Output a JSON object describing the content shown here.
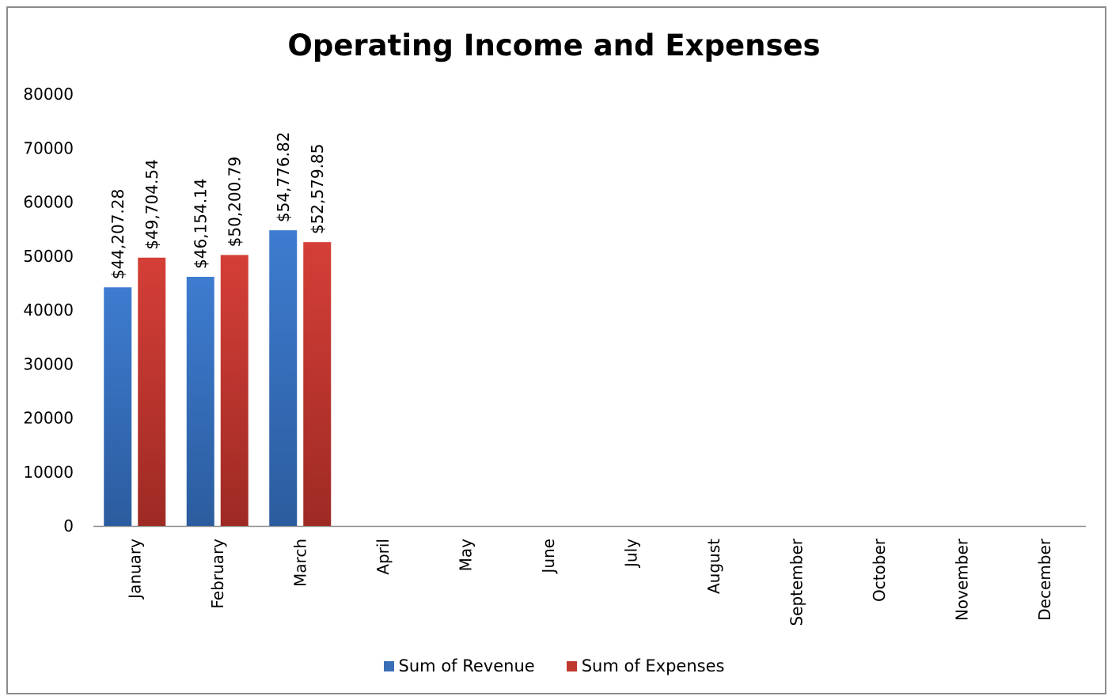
{
  "chart_data": {
    "type": "bar",
    "title": "Operating Income and Expenses",
    "xlabel": "",
    "ylabel": "",
    "categories": [
      "January",
      "February",
      "March",
      "April",
      "May",
      "June",
      "July",
      "August",
      "September",
      "October",
      "November",
      "December"
    ],
    "series": [
      {
        "name": "Sum of Revenue",
        "color": "#3A6FB8",
        "values": [
          44207.28,
          46154.14,
          54776.82,
          null,
          null,
          null,
          null,
          null,
          null,
          null,
          null,
          null
        ],
        "labels": [
          "$44,207.28",
          "$46,154.14",
          "$54,776.82"
        ]
      },
      {
        "name": "Sum of Expenses",
        "color": "#C0392F",
        "values": [
          49704.54,
          50200.79,
          52579.85,
          null,
          null,
          null,
          null,
          null,
          null,
          null,
          null,
          null
        ],
        "labels": [
          "$49,704.54",
          "$50,200.79",
          "$52,579.85"
        ]
      }
    ],
    "ylim": [
      0,
      80000
    ],
    "yticks": [
      "0",
      "10000",
      "20000",
      "30000",
      "40000",
      "50000",
      "60000",
      "70000",
      "80000"
    ],
    "grid": false,
    "legend_position": "bottom"
  }
}
